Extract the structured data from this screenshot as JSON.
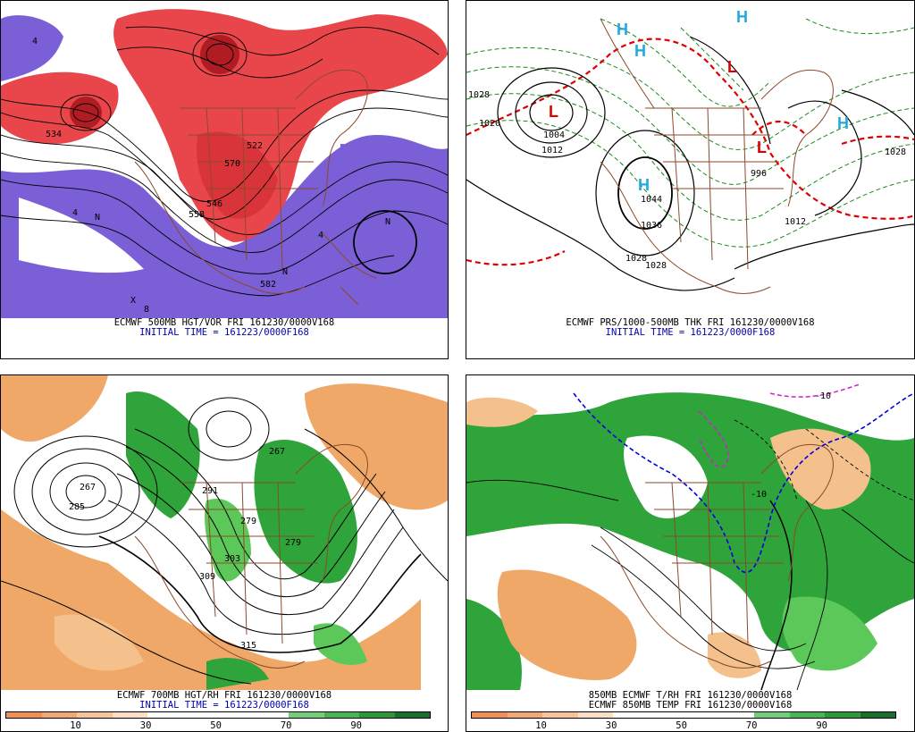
{
  "panels": {
    "p1": {
      "title_line1": "ECMWF 500MB HGT/VOR FRI 161230/0000V168",
      "title_line2": "INITIAL TIME = 161223/0000F168",
      "contour_labels": [
        "534",
        "522",
        "546",
        "558",
        "570",
        "582",
        "4",
        "4",
        "4",
        "N",
        "N",
        "N",
        "X",
        "8"
      ]
    },
    "p2": {
      "title_line1": "ECMWF PRS/1000-500MB THK FRI 161230/0000V168",
      "title_line2": "INITIAL TIME = 161223/0000F168",
      "contour_labels": [
        "1028",
        "1020",
        "1004",
        "1012",
        "1044",
        "1036",
        "1028",
        "1028",
        "1028",
        "1012",
        "996"
      ],
      "highs": [
        "H",
        "H",
        "H",
        "H",
        "H"
      ],
      "lows": [
        "L",
        "L",
        "L"
      ]
    },
    "p3": {
      "title_line1": "ECMWF 700MB HGT/RH FRI 161230/0000V168",
      "title_line2": "INITIAL TIME = 161223/0000F168",
      "contour_labels": [
        "267",
        "291",
        "279",
        "267",
        "279",
        "303",
        "309",
        "315",
        "285"
      ],
      "colorbar_ticks": [
        "10",
        "30",
        "50",
        "70",
        "90"
      ]
    },
    "p4": {
      "title_line1": "850MB ECMWF T/RH FRI 161230/0000V168",
      "title_line2": "ECMWF 850MB TEMP FRI 161230/0000V168",
      "contour_labels": [
        "-10",
        "-10"
      ],
      "colorbar_ticks": [
        "10",
        "30",
        "50",
        "70",
        "90"
      ]
    }
  },
  "colors": {
    "vort_purple": "#7a5fd6",
    "vort_red": "#e8464b",
    "vort_darkred": "#b01c22",
    "rh_green": "#2ea43a",
    "rh_lightgreen": "#5cc85a",
    "dry_orange": "#f0a868",
    "dry_lightorange": "#f4c08c",
    "border_brown": "#8b4a2b",
    "thick_red": "#e00000",
    "thick_green": "#1a8a1a",
    "high_cyan": "#22aadd",
    "low_red": "#dd0000"
  },
  "colorbar": {
    "left_colors": [
      "#f09050",
      "#f4aa6e",
      "#f7c596",
      "#fbe0c4",
      "#ffffff",
      "#ffffff",
      "#ffffff",
      "#ffffff",
      "#6fd07a",
      "#46b650",
      "#2a9a34",
      "#14702a"
    ]
  }
}
